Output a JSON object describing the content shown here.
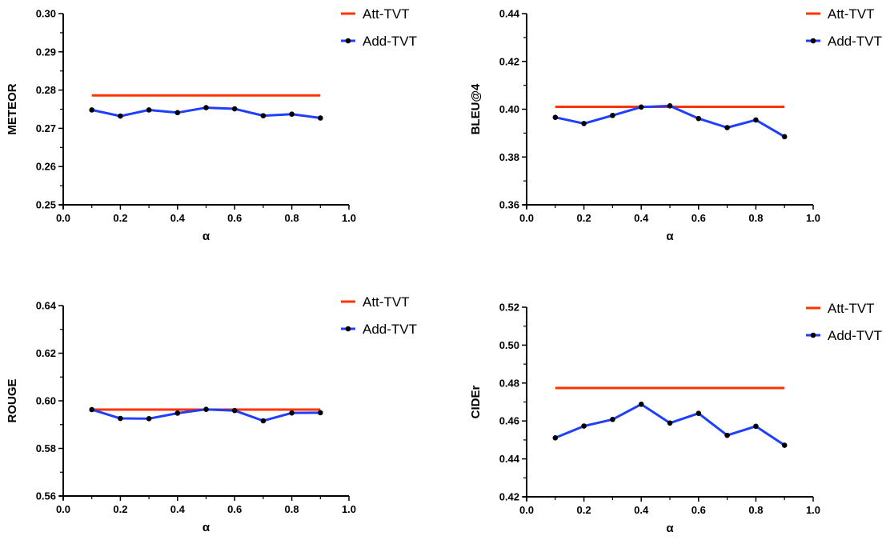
{
  "colors": {
    "att": "#ff3300",
    "add": "#1f3fff",
    "marker": "#000000",
    "axis": "#000000"
  },
  "chart_data": [
    {
      "type": "line",
      "xlabel": "α",
      "ylabel": "METEOR",
      "xlim": [
        0.0,
        1.0
      ],
      "ylim": [
        0.25,
        0.3
      ],
      "xticks": [
        "0.0",
        "0.2",
        "0.4",
        "0.6",
        "0.8",
        "1.0"
      ],
      "yticks": [
        "0.25",
        "0.26",
        "0.27",
        "0.28",
        "0.29",
        "0.30"
      ],
      "legend": [
        "Att-TVT",
        "Add-TVT"
      ],
      "series": [
        {
          "name": "Att-TVT",
          "x": [
            0.1,
            0.9
          ],
          "values": [
            0.2786,
            0.2786
          ]
        },
        {
          "name": "Add-TVT",
          "x": [
            0.1,
            0.2,
            0.3,
            0.4,
            0.5,
            0.6,
            0.7,
            0.8,
            0.9
          ],
          "values": [
            0.2748,
            0.2732,
            0.2748,
            0.2741,
            0.2754,
            0.2751,
            0.2733,
            0.2737,
            0.2727
          ]
        }
      ]
    },
    {
      "type": "line",
      "xlabel": "α",
      "ylabel": "BLEU@4",
      "xlim": [
        0.0,
        1.0
      ],
      "ylim": [
        0.36,
        0.44
      ],
      "xticks": [
        "0.0",
        "0.2",
        "0.4",
        "0.6",
        "0.8",
        "1.0"
      ],
      "yticks": [
        "0.36",
        "0.38",
        "0.40",
        "0.42",
        "0.44"
      ],
      "legend": [
        "Att-TVT",
        "Add-TVT"
      ],
      "series": [
        {
          "name": "Att-TVT",
          "x": [
            0.1,
            0.9
          ],
          "values": [
            0.401,
            0.401
          ]
        },
        {
          "name": "Add-TVT",
          "x": [
            0.1,
            0.2,
            0.3,
            0.4,
            0.5,
            0.6,
            0.7,
            0.8,
            0.9
          ],
          "values": [
            0.3966,
            0.394,
            0.3974,
            0.4009,
            0.4014,
            0.3961,
            0.3923,
            0.3955,
            0.3885
          ]
        }
      ]
    },
    {
      "type": "line",
      "xlabel": "α",
      "ylabel": "ROUGE",
      "xlim": [
        0.0,
        1.0
      ],
      "ylim": [
        0.56,
        0.64
      ],
      "xticks": [
        "0.0",
        "0.2",
        "0.4",
        "0.6",
        "0.8",
        "1.0"
      ],
      "yticks": [
        "0.56",
        "0.58",
        "0.60",
        "0.62",
        "0.64"
      ],
      "legend": [
        "Att-TVT",
        "Add-TVT"
      ],
      "series": [
        {
          "name": "Att-TVT",
          "x": [
            0.1,
            0.9
          ],
          "values": [
            0.5963,
            0.5963
          ]
        },
        {
          "name": "Add-TVT",
          "x": [
            0.1,
            0.2,
            0.3,
            0.4,
            0.5,
            0.6,
            0.7,
            0.8,
            0.9
          ],
          "values": [
            0.5963,
            0.5926,
            0.5925,
            0.5948,
            0.5964,
            0.5959,
            0.5916,
            0.5949,
            0.595
          ]
        }
      ]
    },
    {
      "type": "line",
      "xlabel": "α",
      "ylabel": "CIDEr",
      "xlim": [
        0.0,
        1.0
      ],
      "ylim": [
        0.42,
        0.52
      ],
      "xticks": [
        "0.0",
        "0.2",
        "0.4",
        "0.6",
        "0.8",
        "1.0"
      ],
      "yticks": [
        "0.42",
        "0.44",
        "0.46",
        "0.48",
        "0.50",
        "0.52"
      ],
      "legend": [
        "Att-TVT",
        "Add-TVT"
      ],
      "series": [
        {
          "name": "Att-TVT",
          "x": [
            0.1,
            0.9
          ],
          "values": [
            0.4774,
            0.4774
          ]
        },
        {
          "name": "Add-TVT",
          "x": [
            0.1,
            0.2,
            0.3,
            0.4,
            0.5,
            0.6,
            0.7,
            0.8,
            0.9
          ],
          "values": [
            0.4511,
            0.4573,
            0.4608,
            0.4688,
            0.4589,
            0.464,
            0.4524,
            0.4572,
            0.4472
          ]
        }
      ]
    }
  ]
}
